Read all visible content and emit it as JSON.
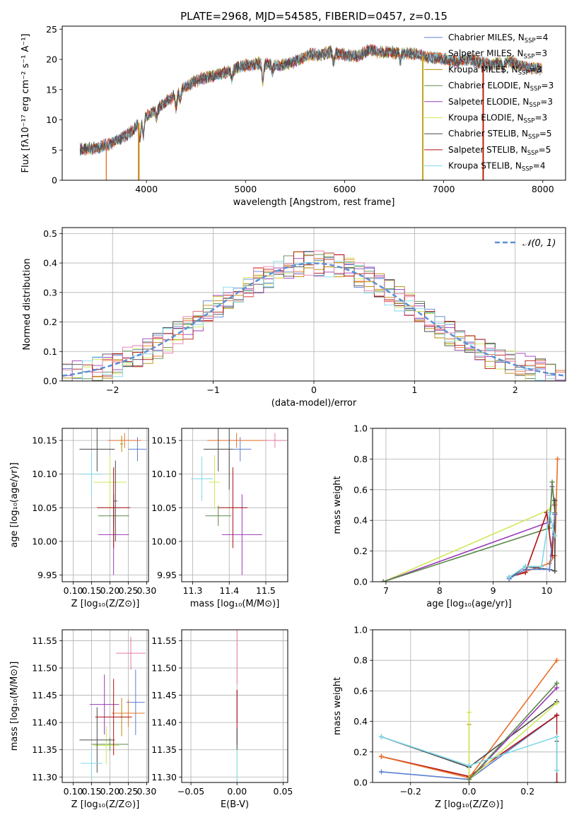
{
  "colors": {
    "chabrier_miles": "#5b7fcf",
    "salpeter_miles": "#e8702a",
    "kroupa_miles": "#b58900",
    "chabrier_elodie": "#5a8a4a",
    "salpeter_elodie": "#9b3ab8",
    "kroupa_elodie": "#cfe85a",
    "chabrier_stelib": "#4a4a4a",
    "salpeter_stelib": "#b01010",
    "kroupa_stelib": "#7fd8e8",
    "gaussian": "#5b8fd6",
    "pink": "#e87aa8"
  },
  "chart_data": [
    {
      "type": "line",
      "title": "PLATE=2968, MJD=54585, FIBERID=0457, z=0.15",
      "xlabel": "wavelength [Angstrom, rest frame]",
      "ylabel": "Flux [fλ10⁻¹⁷ erg cm⁻² s⁻¹ A⁻¹]",
      "xlim": [
        3150,
        8230
      ],
      "ylim": [
        0,
        25.5
      ],
      "xticks": [
        4000,
        5000,
        6000,
        7000,
        8000
      ],
      "yticks": [
        0,
        5,
        10,
        15,
        20,
        25
      ],
      "grid": false,
      "legend_position": "top-right",
      "legend": [
        {
          "label": "Chabrier MILES, N",
          "sub": "SSP",
          "tail": "=4",
          "color": "chabrier_miles"
        },
        {
          "label": "Salpeter MILES, N",
          "sub": "SSP",
          "tail": "=3",
          "color": "salpeter_miles"
        },
        {
          "label": "Kroupa MILES, N",
          "sub": "SSP",
          "tail": "=3",
          "color": "kroupa_miles"
        },
        {
          "label": "Chabrier ELODIE, N",
          "sub": "SSP",
          "tail": "=3",
          "color": "chabrier_elodie"
        },
        {
          "label": "Salpeter ELODIE, N",
          "sub": "SSP",
          "tail": "=3",
          "color": "salpeter_elodie"
        },
        {
          "label": "Kroupa ELODIE, N",
          "sub": "SSP",
          "tail": "=3",
          "color": "kroupa_elodie"
        },
        {
          "label": "Chabrier STELIB, N",
          "sub": "SSP",
          "tail": "=5",
          "color": "chabrier_stelib"
        },
        {
          "label": "Salpeter STELIB, N",
          "sub": "SSP",
          "tail": "=5",
          "color": "salpeter_stelib"
        },
        {
          "label": "Kroupa STELIB, N",
          "sub": "SSP",
          "tail": "=4",
          "color": "kroupa_stelib"
        }
      ],
      "continuum_anchors": [
        [
          3330,
          5.1
        ],
        [
          3500,
          5.3
        ],
        [
          3700,
          6.5
        ],
        [
          3850,
          8.0
        ],
        [
          3950,
          10.0
        ],
        [
          4050,
          11.2
        ],
        [
          4150,
          12.3
        ],
        [
          4250,
          13.6
        ],
        [
          4350,
          15.0
        ],
        [
          4450,
          16.0
        ],
        [
          4550,
          16.8
        ],
        [
          4650,
          17.2
        ],
        [
          4750,
          17.6
        ],
        [
          4850,
          18.1
        ],
        [
          4950,
          18.9
        ],
        [
          5050,
          19.1
        ],
        [
          5150,
          19.4
        ],
        [
          5250,
          19.2
        ],
        [
          5350,
          19.0
        ],
        [
          5450,
          19.3
        ],
        [
          5550,
          20.0
        ],
        [
          5650,
          20.8
        ],
        [
          5750,
          20.7
        ],
        [
          5850,
          21.2
        ],
        [
          5950,
          20.9
        ],
        [
          6050,
          20.6
        ],
        [
          6150,
          20.6
        ],
        [
          6250,
          21.6
        ],
        [
          6350,
          21.2
        ],
        [
          6450,
          21.2
        ],
        [
          6550,
          21.0
        ],
        [
          6650,
          21.0
        ],
        [
          6750,
          20.8
        ],
        [
          6850,
          20.3
        ],
        [
          6950,
          20.3
        ],
        [
          7050,
          19.8
        ],
        [
          7150,
          19.6
        ],
        [
          7250,
          20.1
        ],
        [
          7350,
          19.6
        ],
        [
          7450,
          19.2
        ],
        [
          7550,
          19.3
        ],
        [
          7650,
          19.7
        ],
        [
          7750,
          19.1
        ],
        [
          7850,
          18.6
        ],
        [
          7950,
          18.5
        ]
      ],
      "absorption_features": [
        [
          3934,
          2.8
        ],
        [
          3969,
          2.6
        ],
        [
          4102,
          1.5
        ],
        [
          4300,
          2.4
        ],
        [
          4341,
          1.6
        ],
        [
          4861,
          1.4
        ],
        [
          5175,
          3.0
        ],
        [
          5270,
          1.2
        ],
        [
          5890,
          1.6
        ],
        [
          6563,
          1.2
        ],
        [
          7600,
          1.0
        ]
      ],
      "masked_drops": [
        {
          "x": 3595,
          "color": "salpeter_miles"
        },
        {
          "x": 3920,
          "color": "salpeter_miles"
        },
        {
          "x": 3925,
          "color": "kroupa_miles"
        },
        {
          "x": 6785,
          "color": "kroupa_elodie"
        },
        {
          "x": 6790,
          "color": "kroupa_miles"
        },
        {
          "x": 7395,
          "color": "salpeter_miles"
        },
        {
          "x": 7400,
          "color": "salpeter_stelib"
        }
      ]
    },
    {
      "type": "line",
      "xlabel": "(data-model)/error",
      "ylabel": "Normed distribution",
      "xlim": [
        -2.5,
        2.5
      ],
      "ylim": [
        0,
        0.52
      ],
      "xticks": [
        -2,
        -1,
        0,
        1,
        2
      ],
      "yticks": [
        0.0,
        0.1,
        0.2,
        0.3,
        0.4,
        0.5
      ],
      "grid": true,
      "legend_position": "top-right",
      "reference_label": "𝒩(0, 1)",
      "bin_width": 0.1,
      "series_order": [
        "chabrier_miles",
        "salpeter_miles",
        "kroupa_miles",
        "chabrier_elodie",
        "salpeter_elodie",
        "kroupa_elodie",
        "chabrier_stelib",
        "salpeter_stelib",
        "kroupa_stelib",
        "pink"
      ]
    },
    {
      "type": "scatter",
      "xlabel": "Z [log₁₀(Z/Z⊙)]",
      "ylabel": "age  [log₁₀(age/yr)]",
      "xlim": [
        0.07,
        0.305
      ],
      "ylim": [
        9.94,
        10.168
      ],
      "xticks": [
        0.1,
        0.15,
        0.2,
        0.25,
        0.3
      ],
      "yticks": [
        9.95,
        10.0,
        10.05,
        10.1,
        10.15
      ],
      "grid": true,
      "points": [
        {
          "color": "chabrier_miles",
          "x": 0.275,
          "y": 10.137,
          "xerr": 0.025,
          "yerr": 0.018
        },
        {
          "color": "salpeter_miles",
          "x": 0.24,
          "y": 10.15,
          "xerr": 0.045,
          "yerr": 0.011
        },
        {
          "color": "kroupa_miles",
          "x": 0.232,
          "y": 10.145,
          "xerr": 0.004,
          "yerr": 0.012
        },
        {
          "color": "chabrier_elodie",
          "x": 0.21,
          "y": 10.038,
          "xerr": 0.042,
          "yerr": 0.015
        },
        {
          "color": "salpeter_elodie",
          "x": 0.21,
          "y": 10.01,
          "xerr": 0.042,
          "yerr": 0.06
        },
        {
          "color": "kroupa_elodie",
          "x": 0.2,
          "y": 10.088,
          "xerr": 0.045,
          "yerr": 0.04
        },
        {
          "color": "chabrier_stelib",
          "x": 0.165,
          "y": 10.137,
          "xerr": 0.048,
          "yerr": 0.033
        },
        {
          "color": "salpeter_stelib",
          "x": 0.21,
          "y": 10.05,
          "xerr": 0.045,
          "yerr": 0.06
        },
        {
          "color": "kroupa_stelib",
          "x": 0.15,
          "y": 10.1,
          "xerr": 0.028,
          "yerr": 0.033
        },
        {
          "color": "chabrier_stelib",
          "x": 0.215,
          "y": 10.06,
          "xerr": 0.005,
          "yerr": 0.06
        }
      ]
    },
    {
      "type": "scatter",
      "xlabel": "mass [log₁₀(M/M⊙)]",
      "xlim": [
        11.27,
        11.56
      ],
      "ylim": [
        9.94,
        10.168
      ],
      "xticks": [
        11.3,
        11.4,
        11.5
      ],
      "yticks": [
        9.95,
        10.0,
        10.05,
        10.1,
        10.15
      ],
      "grid": true,
      "points": [
        {
          "color": "chabrier_miles",
          "x": 11.43,
          "y": 10.137,
          "xerr": 0.03,
          "yerr": 0.018
        },
        {
          "color": "salpeter_miles",
          "x": 11.42,
          "y": 10.15,
          "xerr": 0.08,
          "yerr": 0.011
        },
        {
          "color": "pink",
          "x": 11.525,
          "y": 10.15,
          "xerr": 0.03,
          "yerr": 0.011
        },
        {
          "color": "chabrier_elodie",
          "x": 11.37,
          "y": 10.038,
          "xerr": 0.035,
          "yerr": 0.015
        },
        {
          "color": "salpeter_elodie",
          "x": 11.435,
          "y": 10.01,
          "xerr": 0.055,
          "yerr": 0.06
        },
        {
          "color": "kroupa_elodie",
          "x": 11.36,
          "y": 10.088,
          "xerr": 0.015,
          "yerr": 0.04
        },
        {
          "color": "chabrier_stelib",
          "x": 11.37,
          "y": 10.137,
          "xerr": 0.04,
          "yerr": 0.033
        },
        {
          "color": "salpeter_stelib",
          "x": 11.41,
          "y": 10.05,
          "xerr": 0.04,
          "yerr": 0.06
        },
        {
          "color": "kroupa_stelib",
          "x": 11.325,
          "y": 10.093,
          "xerr": 0.03,
          "yerr": 0.033
        },
        {
          "color": "chabrier_stelib",
          "x": 11.4,
          "y": 10.137,
          "xerr": 0.005,
          "yerr": 0.06
        }
      ]
    },
    {
      "type": "line",
      "xlabel": "age  [log₁₀(age/yr)]",
      "ylabel": "mass weight",
      "xlim": [
        6.75,
        10.35
      ],
      "ylim": [
        0,
        1.0
      ],
      "xticks": [
        7,
        8,
        9,
        10
      ],
      "yticks": [
        0.0,
        0.2,
        0.4,
        0.6,
        0.8,
        1.0
      ],
      "grid": true,
      "series": [
        {
          "color": "kroupa_elodie",
          "points": [
            [
              6.95,
              0.0
            ],
            [
              10.05,
              0.47
            ],
            [
              10.15,
              0.53
            ]
          ]
        },
        {
          "color": "salpeter_elodie",
          "points": [
            [
              6.95,
              0.0
            ],
            [
              10.05,
              0.39
            ],
            [
              10.1,
              0.62
            ],
            [
              10.15,
              0.5
            ]
          ]
        },
        {
          "color": "chabrier_elodie",
          "points": [
            [
              6.95,
              0.0
            ],
            [
              10.05,
              0.35
            ],
            [
              10.1,
              0.65
            ],
            [
              10.15,
              0.45
            ]
          ]
        },
        {
          "color": "salpeter_miles",
          "points": [
            [
              9.3,
              0.03
            ],
            [
              10.05,
              0.12
            ],
            [
              10.15,
              0.17
            ],
            [
              10.2,
              0.8
            ]
          ]
        },
        {
          "color": "salpeter_stelib",
          "points": [
            [
              9.3,
              0.03
            ],
            [
              9.6,
              0.06
            ],
            [
              10.0,
              0.45
            ],
            [
              10.1,
              0.17
            ],
            [
              10.15,
              0.44
            ]
          ]
        },
        {
          "color": "chabrier_stelib",
          "points": [
            [
              9.3,
              0.02
            ],
            [
              9.6,
              0.1
            ],
            [
              10.05,
              0.08
            ],
            [
              10.15,
              0.07
            ],
            [
              10.15,
              0.53
            ]
          ]
        },
        {
          "color": "chabrier_miles",
          "points": [
            [
              9.3,
              0.02
            ],
            [
              9.6,
              0.08
            ],
            [
              10.05,
              0.08
            ],
            [
              10.15,
              0.44
            ]
          ]
        },
        {
          "color": "kroupa_stelib",
          "points": [
            [
              9.3,
              0.03
            ],
            [
              9.6,
              0.1
            ],
            [
              9.9,
              0.1
            ],
            [
              10.05,
              0.45
            ],
            [
              10.15,
              0.3
            ]
          ]
        }
      ]
    },
    {
      "type": "scatter",
      "xlabel": "Z [log₁₀(Z/Z⊙)]",
      "ylabel": "mass [log₁₀(M/M⊙)]",
      "xlim": [
        0.07,
        0.305
      ],
      "ylim": [
        11.29,
        11.57
      ],
      "xticks": [
        0.1,
        0.15,
        0.2,
        0.25,
        0.3
      ],
      "yticks": [
        11.3,
        11.35,
        11.4,
        11.45,
        11.5,
        11.55
      ],
      "grid": true,
      "points": [
        {
          "color": "pink",
          "x": 0.257,
          "y": 11.527,
          "xerr": 0.04,
          "yerr": 0.03
        },
        {
          "color": "chabrier_miles",
          "x": 0.27,
          "y": 11.437,
          "xerr": 0.025,
          "yerr": 0.06
        },
        {
          "color": "salpeter_miles",
          "x": 0.25,
          "y": 11.417,
          "xerr": 0.045,
          "yerr": 0.025
        },
        {
          "color": "kroupa_miles",
          "x": 0.232,
          "y": 11.41,
          "xerr": 0.004,
          "yerr": 0.035
        },
        {
          "color": "salpeter_elodie",
          "x": 0.185,
          "y": 11.433,
          "xerr": 0.04,
          "yerr": 0.055
        },
        {
          "color": "chabrier_elodie",
          "x": 0.2,
          "y": 11.36,
          "xerr": 0.05,
          "yerr": 0.012
        },
        {
          "color": "kroupa_elodie",
          "x": 0.19,
          "y": 11.358,
          "xerr": 0.035,
          "yerr": 0.035
        },
        {
          "color": "chabrier_stelib",
          "x": 0.165,
          "y": 11.368,
          "xerr": 0.048,
          "yerr": 0.06
        },
        {
          "color": "salpeter_stelib",
          "x": 0.21,
          "y": 11.41,
          "xerr": 0.05,
          "yerr": 0.07
        },
        {
          "color": "kroupa_stelib",
          "x": 0.15,
          "y": 11.325,
          "xerr": 0.03,
          "yerr": 0.028
        }
      ]
    },
    {
      "type": "scatter",
      "xlabel": "E(B-V)",
      "xlim": [
        -0.06,
        0.055
      ],
      "ylim": [
        11.29,
        11.57
      ],
      "xticks": [
        -0.05,
        0.0,
        0.05
      ],
      "yticks": [
        11.3,
        11.35,
        11.4,
        11.45,
        11.5,
        11.55
      ],
      "grid": true,
      "points": [
        {
          "color": "pink",
          "x": 0.0,
          "y": 11.52,
          "yerr": 0.05
        },
        {
          "color": "salpeter_elodie",
          "x": 0.0,
          "y": 11.43,
          "yerr": 0.03
        },
        {
          "color": "salpeter_stelib",
          "x": 0.0,
          "y": 11.41,
          "yerr": 0.05
        },
        {
          "color": "chabrier_stelib",
          "x": 0.0,
          "y": 11.37,
          "yerr": 0.02
        },
        {
          "color": "kroupa_stelib",
          "x": 0.0,
          "y": 11.32,
          "yerr": 0.03
        }
      ]
    },
    {
      "type": "line",
      "xlabel": "Z [log₁₀(Z/Z⊙)]",
      "ylabel": "mass weight",
      "xlim": [
        -0.33,
        0.33
      ],
      "ylim": [
        0,
        1.0
      ],
      "xticks": [
        -0.2,
        0.0,
        0.2
      ],
      "yticks": [
        0.0,
        0.2,
        0.4,
        0.6,
        0.8,
        1.0
      ],
      "grid": true,
      "series": [
        {
          "color": "chabrier_miles",
          "points": [
            [
              -0.3,
              0.07
            ],
            [
              0.0,
              0.02
            ],
            [
              0.3,
              0.44
            ]
          ]
        },
        {
          "color": "salpeter_stelib",
          "points": [
            [
              -0.3,
              0.17
            ],
            [
              0.0,
              0.04
            ],
            [
              0.3,
              0.44
            ]
          ]
        },
        {
          "color": "salpeter_miles",
          "points": [
            [
              -0.3,
              0.17
            ],
            [
              0.0,
              0.03
            ],
            [
              0.3,
              0.8
            ]
          ]
        },
        {
          "color": "chabrier_stelib",
          "points": [
            [
              -0.3,
              0.3
            ],
            [
              0.0,
              0.1
            ],
            [
              0.3,
              0.53
            ]
          ]
        },
        {
          "color": "kroupa_elodie",
          "points": [
            [
              0.0,
              0.46
            ],
            [
              0.0,
              0.02
            ],
            [
              0.3,
              0.52
            ]
          ]
        },
        {
          "color": "salpeter_elodie",
          "points": [
            [
              0.0,
              0.02
            ],
            [
              0.3,
              0.62
            ]
          ]
        },
        {
          "color": "chabrier_elodie",
          "points": [
            [
              0.0,
              0.02
            ],
            [
              0.3,
              0.65
            ]
          ]
        },
        {
          "color": "kroupa_stelib",
          "points": [
            [
              -0.3,
              0.3
            ],
            [
              0.0,
              0.11
            ],
            [
              0.3,
              0.3
            ],
            [
              0.3,
              0.08
            ]
          ]
        }
      ],
      "vertical_errors": [
        {
          "color": "kroupa_miles",
          "x": 0.0,
          "y0": 0.0,
          "y1": 0.38
        },
        {
          "color": "chabrier_stelib",
          "x": 0.3,
          "y0": 0.0,
          "y1": 0.27
        },
        {
          "color": "salpeter_stelib",
          "x": 0.3,
          "y0": 0.0,
          "y1": 0.44
        }
      ]
    }
  ]
}
